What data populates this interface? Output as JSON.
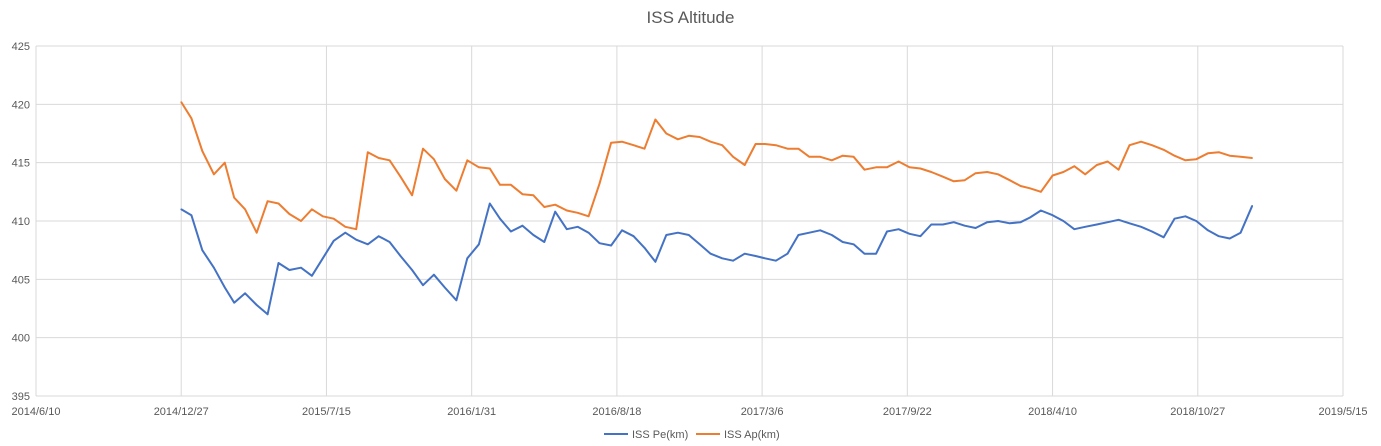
{
  "chart_data": {
    "type": "line",
    "title": "ISS Altitude",
    "xlabel": "",
    "ylabel": "",
    "x_tick_labels": [
      "2014/6/10",
      "2014/12/27",
      "2015/7/15",
      "2016/1/31",
      "2016/8/18",
      "2017/3/6",
      "2017/9/22",
      "2018/4/10",
      "2018/10/27",
      "2019/5/15"
    ],
    "y_tick_labels": [
      "395",
      "400",
      "405",
      "410",
      "415",
      "420",
      "425"
    ],
    "xlim": [
      "2014/6/10",
      "2019/5/15"
    ],
    "ylim": [
      395,
      425
    ],
    "grid": true,
    "legend_position": "bottom",
    "x_dates": [
      "2014/12/27",
      "2015/1/10",
      "2015/1/25",
      "2015/2/10",
      "2015/2/25",
      "2015/3/10",
      "2015/3/25",
      "2015/4/10",
      "2015/4/25",
      "2015/5/10",
      "2015/5/25",
      "2015/6/10",
      "2015/6/25",
      "2015/7/10",
      "2015/7/25",
      "2015/8/10",
      "2015/8/25",
      "2015/9/10",
      "2015/9/25",
      "2015/10/10",
      "2015/10/25",
      "2015/11/10",
      "2015/11/25",
      "2015/12/10",
      "2015/12/25",
      "2016/1/10",
      "2016/1/25",
      "2016/2/10",
      "2016/2/25",
      "2016/3/10",
      "2016/3/25",
      "2016/4/10",
      "2016/4/25",
      "2016/5/10",
      "2016/5/25",
      "2016/6/10",
      "2016/6/25",
      "2016/7/10",
      "2016/7/25",
      "2016/8/10",
      "2016/8/25",
      "2016/9/10",
      "2016/9/25",
      "2016/10/10",
      "2016/10/25",
      "2016/11/10",
      "2016/11/25",
      "2016/12/10",
      "2016/12/25",
      "2017/1/10",
      "2017/1/25",
      "2017/2/10",
      "2017/2/25",
      "2017/3/10",
      "2017/3/25",
      "2017/4/10",
      "2017/4/25",
      "2017/5/10",
      "2017/5/25",
      "2017/6/10",
      "2017/6/25",
      "2017/7/10",
      "2017/7/25",
      "2017/8/10",
      "2017/8/25",
      "2017/9/10",
      "2017/9/25",
      "2017/10/10",
      "2017/10/25",
      "2017/11/10",
      "2017/11/25",
      "2017/12/10",
      "2017/12/25",
      "2018/1/10",
      "2018/1/25",
      "2018/2/10",
      "2018/2/25",
      "2018/3/10",
      "2018/3/25",
      "2018/4/10",
      "2018/4/25",
      "2018/5/10",
      "2018/5/25",
      "2018/6/10",
      "2018/6/25",
      "2018/7/10",
      "2018/7/25",
      "2018/8/10",
      "2018/8/25",
      "2018/9/10",
      "2018/9/25",
      "2018/10/10",
      "2018/10/25",
      "2018/11/10",
      "2018/11/25",
      "2018/12/10",
      "2018/12/25",
      "2019/1/10"
    ],
    "series": [
      {
        "name": "ISS Pe(km)",
        "color": "#4472C4",
        "values": [
          411.0,
          410.5,
          407.5,
          406.0,
          404.3,
          403.0,
          403.8,
          402.8,
          402.0,
          406.4,
          405.8,
          406.0,
          405.3,
          406.8,
          408.3,
          409.0,
          408.4,
          408.0,
          408.7,
          408.2,
          407.0,
          405.8,
          404.5,
          405.4,
          404.3,
          403.2,
          406.8,
          408.0,
          411.5,
          410.2,
          409.1,
          409.6,
          408.8,
          408.2,
          410.8,
          409.3,
          409.5,
          409.0,
          408.1,
          407.9,
          409.2,
          408.7,
          407.7,
          406.5,
          408.8,
          409.0,
          408.8,
          408.0,
          407.2,
          406.8,
          406.6,
          407.2,
          407.0,
          406.8,
          406.6,
          407.2,
          408.8,
          409.0,
          409.2,
          408.8,
          408.2,
          408.0,
          407.2,
          407.2,
          409.1,
          409.3,
          408.9,
          408.7,
          409.7,
          409.7,
          409.9,
          409.6,
          409.4,
          409.9,
          410.0,
          409.8,
          409.9,
          410.3,
          410.9,
          410.5,
          410.0,
          409.3,
          409.5,
          409.7,
          409.9,
          410.1,
          409.8,
          409.5,
          409.1,
          408.6,
          410.2,
          410.4,
          410.0,
          409.2,
          408.7,
          408.5,
          409.0,
          411.3
        ]
      },
      {
        "name": "ISS Ap(km)",
        "color": "#ED7D31",
        "values": [
          420.2,
          418.8,
          416.0,
          414.0,
          415.0,
          412.0,
          411.0,
          409.0,
          411.7,
          411.5,
          410.6,
          410.0,
          411.0,
          410.4,
          410.2,
          409.5,
          409.3,
          415.9,
          415.4,
          415.2,
          413.8,
          412.2,
          416.2,
          415.3,
          413.6,
          412.6,
          415.2,
          414.6,
          414.5,
          413.1,
          413.1,
          412.3,
          412.2,
          411.2,
          411.4,
          410.9,
          410.7,
          410.4,
          413.2,
          416.7,
          416.8,
          416.5,
          416.2,
          418.7,
          417.5,
          417.0,
          417.3,
          417.2,
          416.8,
          416.5,
          415.5,
          414.8,
          416.6,
          416.6,
          416.5,
          416.2,
          416.2,
          415.5,
          415.5,
          415.2,
          415.6,
          415.5,
          414.4,
          414.6,
          414.6,
          415.1,
          414.6,
          414.5,
          414.2,
          413.8,
          413.4,
          413.5,
          414.1,
          414.2,
          414.0,
          413.5,
          413.0,
          412.8,
          412.5,
          413.9,
          414.2,
          414.7,
          414.0,
          414.8,
          415.1,
          414.4,
          416.5,
          416.8,
          416.5,
          416.1,
          415.6,
          415.2,
          415.3,
          415.8,
          415.9,
          415.6,
          415.5,
          415.4
        ]
      }
    ]
  }
}
